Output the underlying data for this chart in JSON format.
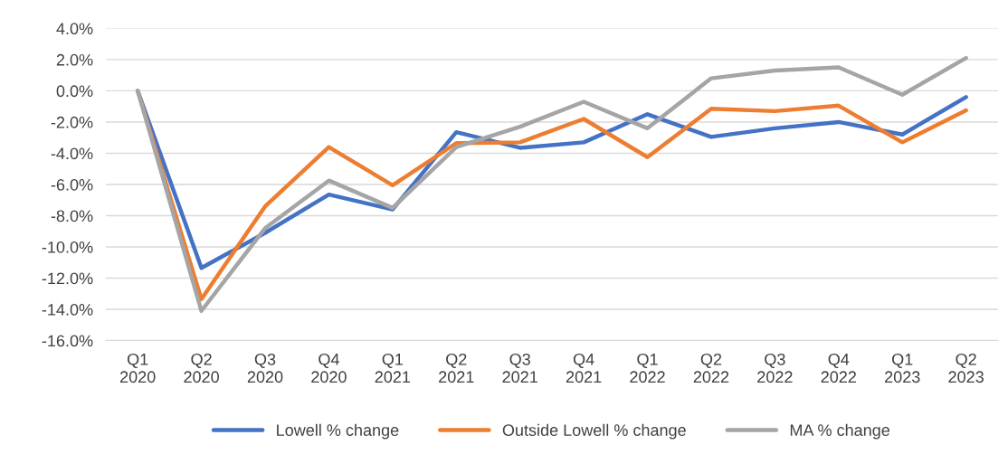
{
  "chart_data": {
    "type": "line",
    "categories": [
      "Q1\n2020",
      "Q2\n2020",
      "Q3\n2020",
      "Q4\n2020",
      "Q1\n2021",
      "Q2\n2021",
      "Q3\n2021",
      "Q4\n2021",
      "Q1\n2022",
      "Q2\n2022",
      "Q3\n2022",
      "Q4\n2022",
      "Q1\n2023",
      "Q2\n2023"
    ],
    "series": [
      {
        "name": "Lowell % change",
        "color": "#4472c4",
        "values": [
          0,
          -11.35,
          -9.1,
          -6.65,
          -7.6,
          -2.65,
          -3.65,
          -3.3,
          -1.5,
          -2.95,
          -2.4,
          -2.0,
          -2.8,
          -0.4
        ]
      },
      {
        "name": "Outside Lowell % change",
        "color": "#ed7d31",
        "values": [
          0,
          -13.35,
          -7.4,
          -3.6,
          -6.05,
          -3.35,
          -3.3,
          -1.8,
          -4.25,
          -1.15,
          -1.3,
          -0.95,
          -3.3,
          -1.25
        ]
      },
      {
        "name": "MA % change",
        "color": "#a5a5a5",
        "values": [
          0,
          -14.1,
          -8.8,
          -5.75,
          -7.5,
          -3.6,
          -2.3,
          -0.7,
          -2.4,
          0.8,
          1.3,
          1.5,
          -0.25,
          2.1
        ]
      }
    ],
    "ylim": [
      -16,
      4
    ],
    "yticks": [
      {
        "value": -16,
        "label": "-16.0%"
      },
      {
        "value": -14,
        "label": "-14.0%"
      },
      {
        "value": -12,
        "label": "-12.0%"
      },
      {
        "value": -10,
        "label": "-10.0%"
      },
      {
        "value": -8,
        "label": "-8.0%"
      },
      {
        "value": -6,
        "label": "-6.0%"
      },
      {
        "value": -4,
        "label": "-4.0%"
      },
      {
        "value": -2,
        "label": "-2.0%"
      },
      {
        "value": 0,
        "label": "0.0%"
      },
      {
        "value": 2,
        "label": "2.0%"
      },
      {
        "value": 4,
        "label": "4.0%"
      }
    ],
    "grid": "y",
    "legend": "bottom",
    "marker": "none",
    "line_style": "solid"
  }
}
